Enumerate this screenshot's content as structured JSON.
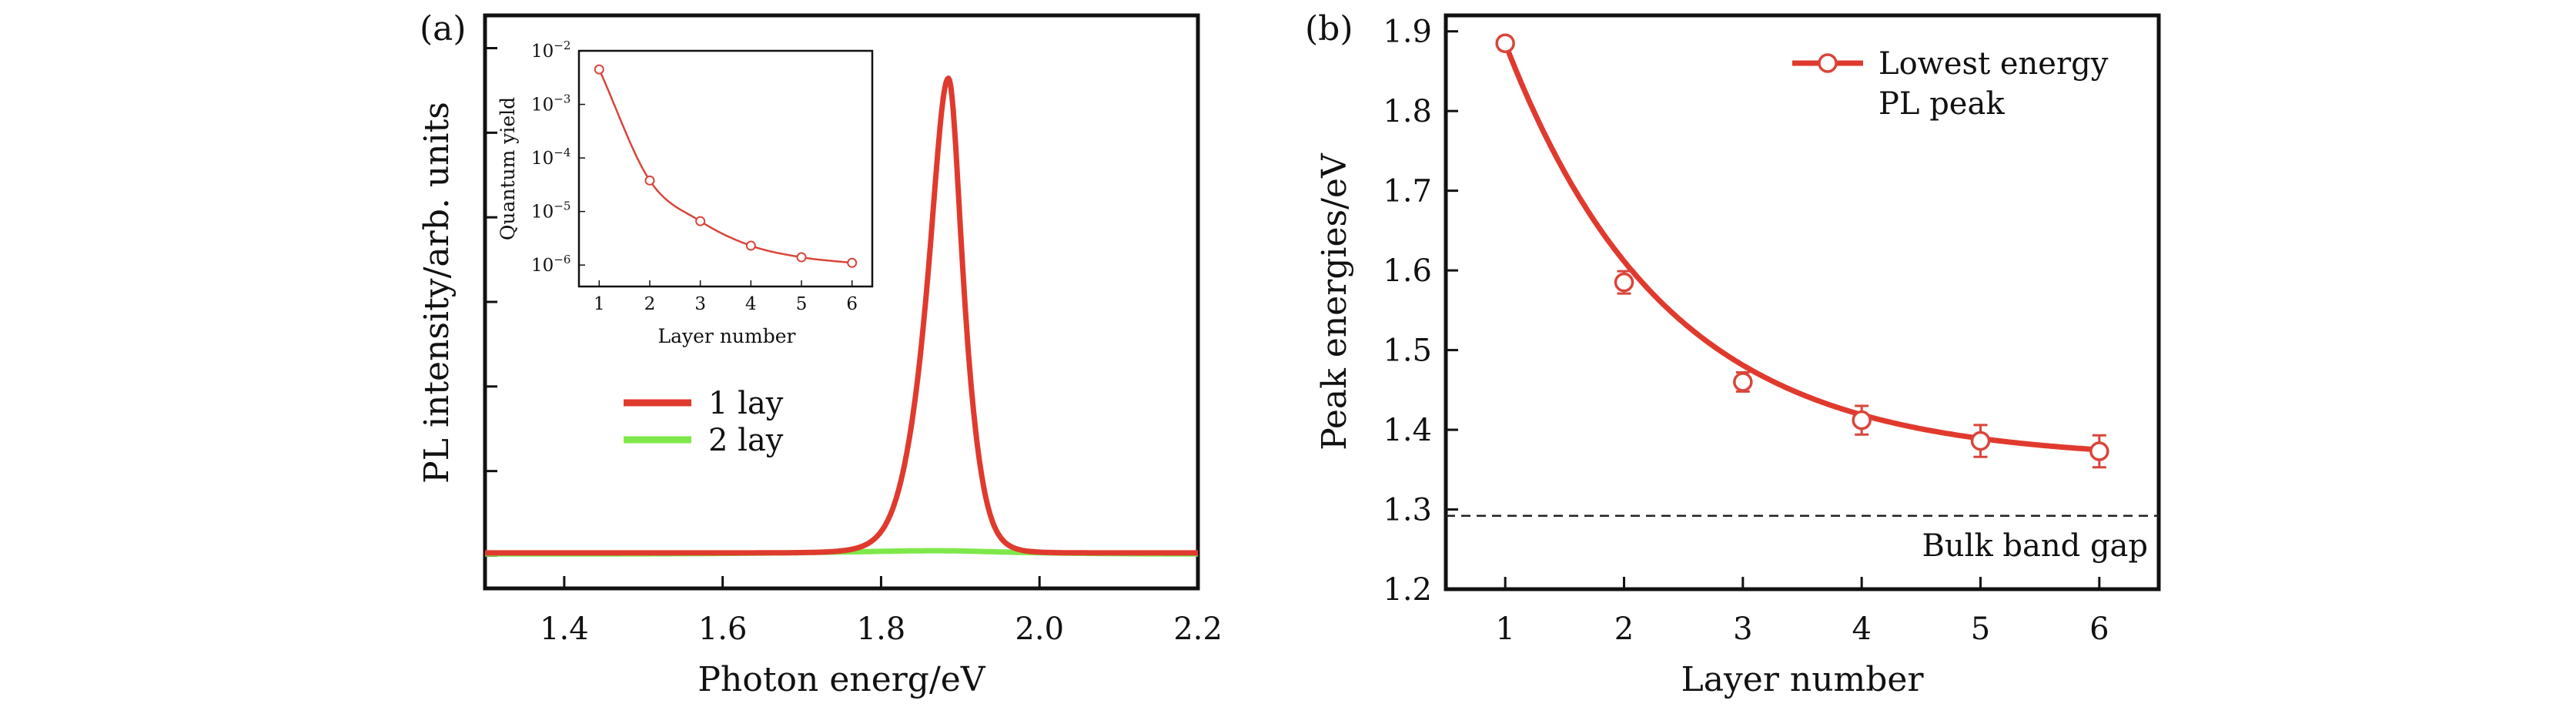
{
  "chart_data": [
    {
      "panel": "(a)",
      "type": "line",
      "xlabel": "Photon energ/eV",
      "ylabel": "PL intensity/arb. units",
      "xlim": [
        1.3,
        2.2
      ],
      "ylim": [
        0,
        1.05
      ],
      "x_ticks": [
        "1.4",
        "1.6",
        "1.8",
        "2.0",
        "2.2"
      ],
      "y_ticks_count": 7,
      "legend": {
        "position": "center-left"
      },
      "series": [
        {
          "name": "1 lay",
          "color": "#e03a2e",
          "peak_center": 1.885,
          "peak_halfwidth": 0.025,
          "peak_height": 0.87,
          "baseline": 0.005
        },
        {
          "name": "2 lay",
          "color": "#7ee84a",
          "peak_center": 1.87,
          "peak_halfwidth": 0.12,
          "peak_height": 0.006,
          "baseline": 0.003
        }
      ],
      "inset": {
        "type": "scatter+line",
        "xlabel": "Layer number",
        "ylabel": "Quantum yield",
        "yscale": "log",
        "xlim": [
          0.6,
          6.4
        ],
        "ylim_exp": [
          -6.4,
          -2
        ],
        "x_ticks": [
          "1",
          "2",
          "3",
          "4",
          "5",
          "6"
        ],
        "y_ticks": [
          {
            "base": "10",
            "exp": "−2"
          },
          {
            "base": "10",
            "exp": "−3"
          },
          {
            "base": "10",
            "exp": "−4"
          },
          {
            "base": "10",
            "exp": "−5"
          },
          {
            "base": "10",
            "exp": "−6"
          }
        ],
        "x": [
          1,
          2,
          3,
          4,
          5,
          6
        ],
        "y": [
          0.0045,
          3.8e-05,
          6.6e-06,
          2.3e-06,
          1.4e-06,
          1.1e-06
        ],
        "color": "#d9453a"
      }
    },
    {
      "panel": "(b)",
      "type": "scatter",
      "xlabel": "Layer number",
      "ylabel": "Peak energies/eV",
      "xlim": [
        0.5,
        6.5
      ],
      "ylim": [
        1.2,
        1.92
      ],
      "x_ticks": [
        "1",
        "2",
        "3",
        "4",
        "5",
        "6"
      ],
      "y_ticks": [
        "1.2",
        "1.3",
        "1.4",
        "1.5",
        "1.6",
        "1.7",
        "1.8",
        "1.9"
      ],
      "legend": {
        "position": "top-right",
        "label_line1": "Lowest energy",
        "label_line2": "PL peak"
      },
      "series": [
        {
          "name": "Lowest energy PL peak",
          "x": [
            1,
            2,
            3,
            4,
            5,
            6
          ],
          "y": [
            1.885,
            1.585,
            1.46,
            1.412,
            1.386,
            1.373
          ],
          "yerr": [
            0.008,
            0.014,
            0.012,
            0.018,
            0.02,
            0.02
          ],
          "color": "#d9453a"
        }
      ],
      "fit": {
        "type": "exponential",
        "a": 1.362,
        "b": 0.523,
        "k": 0.74,
        "color": "#e03a2e"
      },
      "annotation": {
        "text": "Bulk band gap",
        "y": 1.292,
        "style": "dashed"
      }
    }
  ]
}
